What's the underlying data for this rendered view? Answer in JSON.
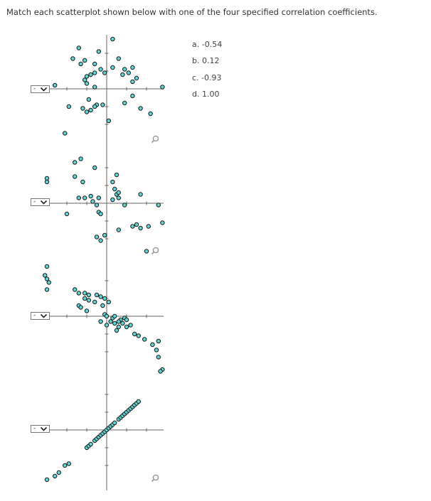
{
  "question": "Match each scatterplot shown below with one of the four specified correlation coefficients.",
  "dropdown_selected": "-",
  "options": [
    "a. -0.54",
    "b. 0.12",
    "c. -0.93",
    "d. 1.00"
  ],
  "colors": {
    "point_fill": "#5fd5d5",
    "point_stroke": "#1a1a1a",
    "axis": "#666666",
    "icon": "#999999"
  },
  "icons": {
    "dropdown": "chevron-down-icon",
    "zoom": "magnifier-icon"
  },
  "chart_data": [
    {
      "type": "scatter",
      "xlim": [
        -3,
        3
      ],
      "ylim": [
        -3,
        3
      ],
      "points": [
        [
          0.3,
          2.8
        ],
        [
          -1.4,
          2.3
        ],
        [
          -0.4,
          2.1
        ],
        [
          -1.7,
          1.7
        ],
        [
          -1.1,
          1.6
        ],
        [
          0.6,
          1.7
        ],
        [
          -1.3,
          1.4
        ],
        [
          -0.6,
          1.4
        ],
        [
          0.3,
          1.2
        ],
        [
          1.3,
          1.2
        ],
        [
          -0.3,
          1.1
        ],
        [
          0.9,
          1.1
        ],
        [
          -0.1,
          0.9
        ],
        [
          -0.6,
          0.9
        ],
        [
          1.1,
          0.9
        ],
        [
          -0.8,
          0.8
        ],
        [
          0.8,
          0.8
        ],
        [
          -1.0,
          0.7
        ],
        [
          1.5,
          0.6
        ],
        [
          -1.1,
          0.5
        ],
        [
          1.3,
          0.4
        ],
        [
          -1.0,
          0.3
        ],
        [
          -0.6,
          0.1
        ],
        [
          -2.6,
          0.2
        ],
        [
          2.8,
          0.1
        ],
        [
          1.3,
          -0.4
        ],
        [
          0.9,
          -0.8
        ],
        [
          -0.9,
          -0.6
        ],
        [
          -0.5,
          -0.9
        ],
        [
          -0.2,
          -0.9
        ],
        [
          -1.9,
          -1.0
        ],
        [
          -1.2,
          -1.1
        ],
        [
          -1.0,
          -1.3
        ],
        [
          -0.8,
          -1.2
        ],
        [
          -0.6,
          -1.0
        ],
        [
          1.7,
          -1.1
        ],
        [
          2.2,
          -1.4
        ],
        [
          0.1,
          -1.8
        ],
        [
          -2.1,
          -2.5
        ]
      ]
    },
    {
      "type": "scatter",
      "xlim": [
        -3,
        3
      ],
      "ylim": [
        -3,
        3
      ],
      "points": [
        [
          -1.3,
          2.5
        ],
        [
          -1.6,
          2.3
        ],
        [
          -0.6,
          2.0
        ],
        [
          0.5,
          1.6
        ],
        [
          -1.6,
          1.5
        ],
        [
          -3.0,
          1.4
        ],
        [
          -3.0,
          1.2
        ],
        [
          -1.2,
          1.2
        ],
        [
          0.3,
          1.2
        ],
        [
          0.4,
          0.8
        ],
        [
          0.5,
          0.5
        ],
        [
          0.6,
          0.3
        ],
        [
          0.3,
          0.2
        ],
        [
          1.7,
          0.5
        ],
        [
          0.6,
          0.6
        ],
        [
          -1.4,
          0.3
        ],
        [
          -1.1,
          0.3
        ],
        [
          -0.8,
          0.4
        ],
        [
          -0.4,
          0.3
        ],
        [
          -0.7,
          0.1
        ],
        [
          -0.5,
          -0.1
        ],
        [
          0.9,
          -0.1
        ],
        [
          2.6,
          -0.1
        ],
        [
          -2.0,
          -0.6
        ],
        [
          -0.4,
          -0.5
        ],
        [
          -0.3,
          -0.6
        ],
        [
          0.6,
          -1.5
        ],
        [
          1.3,
          -1.3
        ],
        [
          1.5,
          -1.2
        ],
        [
          1.7,
          -1.4
        ],
        [
          2.1,
          -1.3
        ],
        [
          2.8,
          -1.1
        ],
        [
          -0.5,
          -1.9
        ],
        [
          -0.3,
          -2.1
        ],
        [
          -0.1,
          -1.8
        ],
        [
          2.0,
          -2.7
        ]
      ]
    },
    {
      "type": "scatter",
      "xlim": [
        -3,
        3
      ],
      "ylim": [
        -3,
        3
      ],
      "points": [
        [
          -3.0,
          2.8
        ],
        [
          -3.1,
          2.3
        ],
        [
          -3.0,
          2.1
        ],
        [
          -2.9,
          1.9
        ],
        [
          -3.0,
          1.5
        ],
        [
          -1.6,
          1.5
        ],
        [
          -1.4,
          1.3
        ],
        [
          -1.1,
          1.3
        ],
        [
          -0.9,
          1.2
        ],
        [
          -0.5,
          1.2
        ],
        [
          -0.3,
          1.1
        ],
        [
          -0.1,
          1.0
        ],
        [
          -1.1,
          1.0
        ],
        [
          -0.9,
          0.9
        ],
        [
          -0.6,
          0.8
        ],
        [
          0.1,
          0.8
        ],
        [
          -1.4,
          0.6
        ],
        [
          -1.3,
          0.5
        ],
        [
          -0.2,
          0.6
        ],
        [
          -1.0,
          0.3
        ],
        [
          -0.1,
          0.1
        ],
        [
          0.0,
          0.0
        ],
        [
          0.3,
          -0.1
        ],
        [
          0.4,
          0.0
        ],
        [
          0.7,
          -0.2
        ],
        [
          0.9,
          -0.1
        ],
        [
          1.0,
          -0.2
        ],
        [
          0.2,
          -0.3
        ],
        [
          0.4,
          -0.4
        ],
        [
          0.6,
          -0.3
        ],
        [
          0.8,
          -0.4
        ],
        [
          -0.3,
          -0.3
        ],
        [
          0.6,
          -0.6
        ],
        [
          1.0,
          -0.6
        ],
        [
          1.2,
          -0.5
        ],
        [
          0.0,
          -0.5
        ],
        [
          0.5,
          -0.8
        ],
        [
          1.4,
          -1.0
        ],
        [
          1.6,
          -1.1
        ],
        [
          1.9,
          -1.3
        ],
        [
          2.3,
          -1.6
        ],
        [
          2.5,
          -1.9
        ],
        [
          2.6,
          -1.4
        ],
        [
          2.6,
          -2.3
        ],
        [
          2.8,
          -3.0
        ],
        [
          2.7,
          -3.1
        ]
      ]
    },
    {
      "type": "scatter",
      "xlim": [
        -3,
        3
      ],
      "ylim": [
        -3,
        3
      ],
      "points": [
        [
          -3.0,
          -2.8
        ],
        [
          -2.6,
          -2.6
        ],
        [
          -2.4,
          -2.4
        ],
        [
          -2.1,
          -2.0
        ],
        [
          -1.9,
          -1.9
        ],
        [
          -1.0,
          -1.0
        ],
        [
          -0.9,
          -0.9
        ],
        [
          -0.8,
          -0.8
        ],
        [
          -0.6,
          -0.6
        ],
        [
          -0.5,
          -0.5
        ],
        [
          -0.4,
          -0.4
        ],
        [
          -0.3,
          -0.3
        ],
        [
          -0.2,
          -0.2
        ],
        [
          -0.1,
          -0.1
        ],
        [
          0.0,
          0.0
        ],
        [
          0.1,
          0.1
        ],
        [
          0.2,
          0.2
        ],
        [
          0.3,
          0.3
        ],
        [
          0.4,
          0.4
        ],
        [
          0.6,
          0.6
        ],
        [
          0.7,
          0.7
        ],
        [
          0.8,
          0.8
        ],
        [
          0.9,
          0.9
        ],
        [
          1.0,
          1.0
        ],
        [
          1.1,
          1.1
        ],
        [
          1.2,
          1.2
        ],
        [
          1.3,
          1.3
        ],
        [
          1.4,
          1.4
        ],
        [
          1.5,
          1.5
        ],
        [
          1.6,
          1.6
        ]
      ]
    }
  ]
}
